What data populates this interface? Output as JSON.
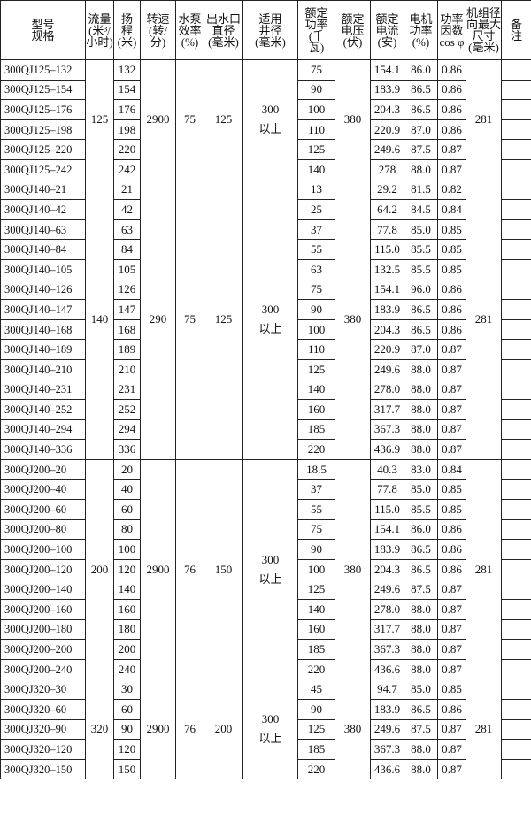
{
  "table": {
    "headers": [
      "型号\n规格",
      "流量\n(米³/\n小时)",
      "扬\n程\n(米)",
      "转速\n(转/\n分)",
      "水泵\n效率\n(%)",
      "出水口\n直径\n(毫米)",
      "适用\n井径\n(毫米)",
      "额定\n功率\n(千\n瓦)",
      "额定\n电压\n(伏)",
      "额定\n电流\n(安)",
      "电机\n功率\n(%)",
      "功率\n因数\ncos φ",
      "机组径\n向最大\n尺寸\n(毫米)",
      "备\n注"
    ],
    "groups": [
      {
        "flow": "125",
        "speed": "2900",
        "efficiency": "75",
        "outlet": "125",
        "well": "300\n以上",
        "voltage": "380",
        "size": "281",
        "rows": [
          [
            "300QJ125–132",
            "132",
            "75",
            "154.1",
            "86.0",
            "0.86"
          ],
          [
            "300QJ125–154",
            "154",
            "90",
            "183.9",
            "86.5",
            "0.86"
          ],
          [
            "300QJ125–176",
            "176",
            "100",
            "204.3",
            "86.5",
            "0.86"
          ],
          [
            "300QJ125–198",
            "198",
            "110",
            "220.9",
            "87.0",
            "0.86"
          ],
          [
            "300QJ125–220",
            "220",
            "125",
            "249.6",
            "87.5",
            "0.87"
          ],
          [
            "300QJ125–242",
            "242",
            "140",
            "278",
            "88.0",
            "0.87"
          ]
        ]
      },
      {
        "flow": "140",
        "speed": "290",
        "efficiency": "75",
        "outlet": "125",
        "well": "300\n以上",
        "voltage": "380",
        "size": "281",
        "rows": [
          [
            "300QJ140–21",
            "21",
            "13",
            "29.2",
            "81.5",
            "0.82"
          ],
          [
            "300QJ140–42",
            "42",
            "25",
            "64.2",
            "84.5",
            "0.84"
          ],
          [
            "300QJ140–63",
            "63",
            "37",
            "77.8",
            "85.0",
            "0.85"
          ],
          [
            "300QJ140–84",
            "84",
            "55",
            "115.0",
            "85.5",
            "0.85"
          ],
          [
            "300QJ140–105",
            "105",
            "63",
            "132.5",
            "85.5",
            "0.85"
          ],
          [
            "300QJ140–126",
            "126",
            "75",
            "154.1",
            "96.0",
            "0.86"
          ],
          [
            "300QJ140–147",
            "147",
            "90",
            "183.9",
            "86.5",
            "0.86"
          ],
          [
            "300QJ140–168",
            "168",
            "100",
            "204.3",
            "86.5",
            "0.86"
          ],
          [
            "300QJ140–189",
            "189",
            "110",
            "220.9",
            "87.0",
            "0.87"
          ],
          [
            "300QJ140–210",
            "210",
            "125",
            "249.6",
            "88.0",
            "0.87"
          ],
          [
            "300QJ140–231",
            "231",
            "140",
            "278.0",
            "88.0",
            "0.87"
          ],
          [
            "300QJ140–252",
            "252",
            "160",
            "317.7",
            "88.0",
            "0.87"
          ],
          [
            "300QJ140–294",
            "294",
            "185",
            "367.3",
            "88.0",
            "0.87"
          ],
          [
            "300QJ140–336",
            "336",
            "220",
            "436.9",
            "88.0",
            "0.87"
          ]
        ]
      },
      {
        "flow": "200",
        "speed": "2900",
        "efficiency": "76",
        "outlet": "150",
        "well": "300\n以上",
        "voltage": "380",
        "size": "281",
        "rows": [
          [
            "300QJ200–20",
            "20",
            "18.5",
            "40.3",
            "83.0",
            "0.84"
          ],
          [
            "300QJ200–40",
            "40",
            "37",
            "77.8",
            "85.0",
            "0.85"
          ],
          [
            "300QJ200–60",
            "60",
            "55",
            "115.0",
            "85.5",
            "0.85"
          ],
          [
            "300QJ200–80",
            "80",
            "75",
            "154.1",
            "86.0",
            "0.86"
          ],
          [
            "300QJ200–100",
            "100",
            "90",
            "183.9",
            "86.5",
            "0.86"
          ],
          [
            "300QJ200–120",
            "120",
            "100",
            "204.3",
            "86.5",
            "0.86"
          ],
          [
            "300QJ200–140",
            "140",
            "125",
            "249.6",
            "87.5",
            "0.87"
          ],
          [
            "300QJ200–160",
            "160",
            "140",
            "278.0",
            "88.0",
            "0.87"
          ],
          [
            "300QJ200–180",
            "180",
            "160",
            "317.7",
            "88.0",
            "0.87"
          ],
          [
            "300QJ200–200",
            "200",
            "185",
            "367.3",
            "88.0",
            "0.87"
          ],
          [
            "300QJ200–240",
            "240",
            "220",
            "436.6",
            "88.0",
            "0.87"
          ]
        ]
      },
      {
        "flow": "320",
        "speed": "2900",
        "efficiency": "76",
        "outlet": "200",
        "well": "300\n以上",
        "voltage": "380",
        "size": "281",
        "rows": [
          [
            "300QJ320–30",
            "30",
            "45",
            "94.7",
            "85.0",
            "0.85"
          ],
          [
            "300QJ320–60",
            "60",
            "90",
            "183.9",
            "86.5",
            "0.86"
          ],
          [
            "300QJ320–90",
            "90",
            "125",
            "249.6",
            "87.5",
            "0.87"
          ],
          [
            "300QJ320–120",
            "120",
            "185",
            "367.3",
            "88.0",
            "0.87"
          ],
          [
            "300QJ320–150",
            "150",
            "220",
            "436.6",
            "88.0",
            "0.87"
          ]
        ]
      }
    ]
  }
}
